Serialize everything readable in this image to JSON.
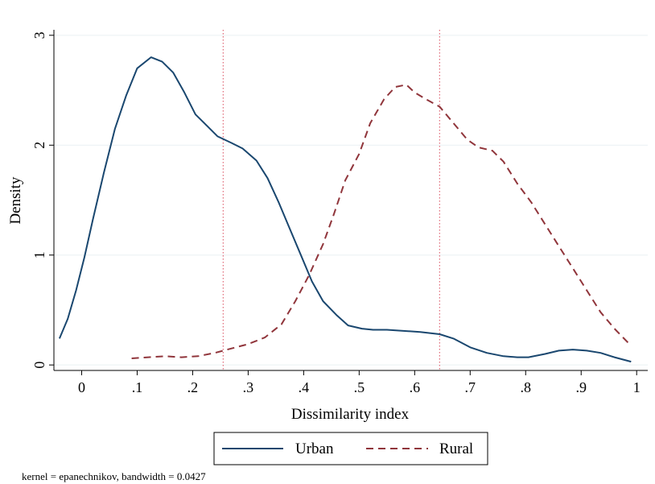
{
  "chart_data": {
    "type": "line",
    "title": "",
    "xlabel": "Dissimilarity index",
    "ylabel": "Density",
    "xlim": [
      -0.05,
      1.02
    ],
    "ylim": [
      -0.05,
      3.05
    ],
    "grid": "horizontal",
    "x_ticks": [
      0,
      0.1,
      0.2,
      0.3,
      0.4,
      0.5,
      0.6,
      0.7,
      0.8,
      0.9,
      1
    ],
    "x_tick_labels": [
      "0",
      ".1",
      ".2",
      ".3",
      ".4",
      ".5",
      ".6",
      ".7",
      ".8",
      ".9",
      "1"
    ],
    "y_ticks": [
      0,
      1,
      2,
      3
    ],
    "y_tick_labels": [
      "0",
      "1",
      "2",
      "3"
    ],
    "legend_position": "bottom",
    "note": "kernel = epanechnikov, bandwidth = 0.0427",
    "reference_lines": [
      {
        "x": 0.255,
        "color": "#e06a78",
        "style": "dotted"
      },
      {
        "x": 0.645,
        "color": "#e06a78",
        "style": "dotted"
      }
    ],
    "series": [
      {
        "name": "Urban",
        "color": "#1a476f",
        "style": "solid",
        "x": [
          -0.04,
          -0.025,
          -0.01,
          0.005,
          0.02,
          0.04,
          0.06,
          0.08,
          0.1,
          0.125,
          0.145,
          0.165,
          0.185,
          0.205,
          0.225,
          0.245,
          0.27,
          0.29,
          0.315,
          0.335,
          0.355,
          0.375,
          0.395,
          0.415,
          0.435,
          0.46,
          0.48,
          0.505,
          0.525,
          0.55,
          0.58,
          0.61,
          0.645,
          0.67,
          0.7,
          0.73,
          0.76,
          0.785,
          0.805,
          0.835,
          0.86,
          0.885,
          0.91,
          0.935,
          0.96,
          0.99
        ],
        "y": [
          0.24,
          0.42,
          0.68,
          0.98,
          1.32,
          1.75,
          2.15,
          2.45,
          2.7,
          2.8,
          2.76,
          2.66,
          2.48,
          2.28,
          2.18,
          2.08,
          2.02,
          1.97,
          1.86,
          1.7,
          1.48,
          1.24,
          1.0,
          0.76,
          0.58,
          0.45,
          0.36,
          0.33,
          0.32,
          0.32,
          0.31,
          0.3,
          0.28,
          0.24,
          0.16,
          0.11,
          0.08,
          0.07,
          0.07,
          0.1,
          0.13,
          0.14,
          0.13,
          0.11,
          0.07,
          0.03
        ]
      },
      {
        "name": "Rural",
        "color": "#90353b",
        "style": "dashed",
        "x": [
          0.09,
          0.12,
          0.15,
          0.18,
          0.21,
          0.24,
          0.27,
          0.3,
          0.33,
          0.36,
          0.385,
          0.41,
          0.435,
          0.455,
          0.475,
          0.5,
          0.52,
          0.545,
          0.565,
          0.585,
          0.6,
          0.62,
          0.645,
          0.67,
          0.695,
          0.715,
          0.74,
          0.76,
          0.785,
          0.81,
          0.835,
          0.86,
          0.885,
          0.91,
          0.935,
          0.96,
          0.985
        ],
        "y": [
          0.06,
          0.07,
          0.08,
          0.07,
          0.08,
          0.11,
          0.15,
          0.19,
          0.25,
          0.37,
          0.58,
          0.82,
          1.1,
          1.38,
          1.68,
          1.92,
          2.2,
          2.42,
          2.53,
          2.55,
          2.48,
          2.42,
          2.35,
          2.2,
          2.05,
          1.98,
          1.95,
          1.85,
          1.65,
          1.48,
          1.28,
          1.08,
          0.88,
          0.68,
          0.48,
          0.33,
          0.2
        ]
      }
    ]
  }
}
